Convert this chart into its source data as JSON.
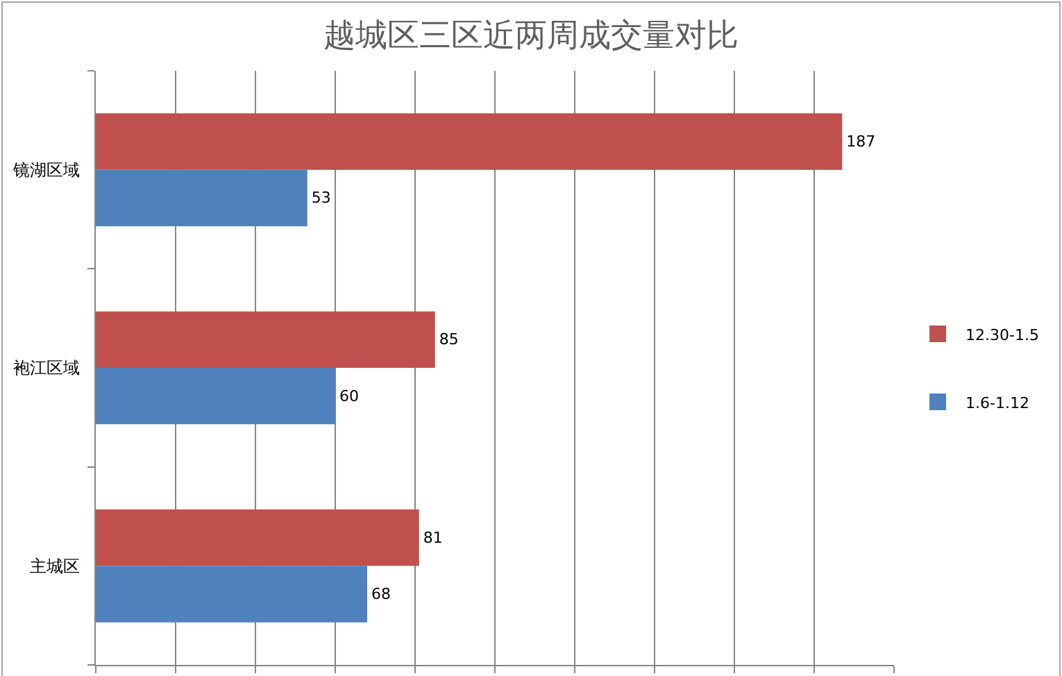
{
  "chart_data": {
    "type": "bar",
    "title": "越城区三区近两周成交量对比",
    "orientation": "horizontal",
    "categories": [
      "镜湖区域",
      "袍江区域",
      "主城区"
    ],
    "series": [
      {
        "name": "12.30-1.5",
        "color": "#c0504d",
        "values": [
          187,
          85,
          81
        ]
      },
      {
        "name": "1.6-1.12",
        "color": "#4f81bd",
        "values": [
          53,
          60,
          68
        ]
      }
    ],
    "xlim": [
      0,
      200
    ],
    "xticks": [
      {
        "value": 0,
        "label": null
      },
      {
        "value": 20,
        "label": null
      },
      {
        "value": 40,
        "label": null
      },
      {
        "value": 60,
        "label": null
      },
      {
        "value": 80,
        "label": null
      },
      {
        "value": 100,
        "label": null
      },
      {
        "value": 120,
        "label": null
      },
      {
        "value": 140,
        "label": null
      },
      {
        "value": 160,
        "label": null
      },
      {
        "value": 180,
        "label": null
      },
      {
        "value": 200,
        "label": null
      }
    ],
    "grid": "x",
    "legend": "right",
    "data_labels": true,
    "tick_labels": "y"
  }
}
